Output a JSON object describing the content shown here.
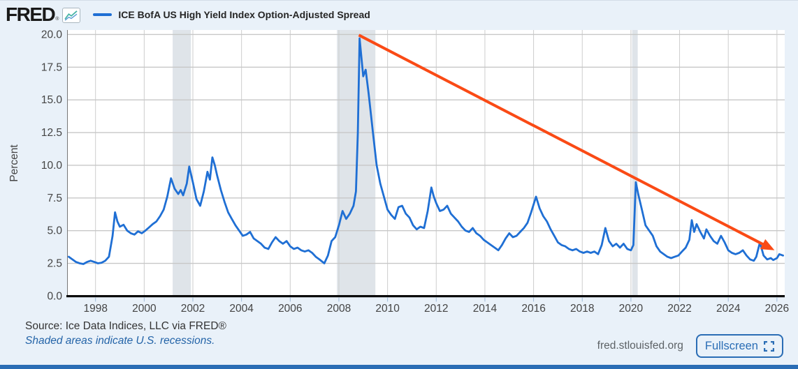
{
  "header": {
    "logo_text": "FRED",
    "registered_mark": "®",
    "series_label": "ICE BofA US High Yield Index Option-Adjusted Spread"
  },
  "footer": {
    "source_line": "Source: Ice Data Indices, LLC via FRED®",
    "recession_note": "Shaded areas indicate U.S. recessions.",
    "site_url": "fred.stlouisfed.org",
    "fullscreen_label": "Fullscreen"
  },
  "colors": {
    "background": "#e9f1f9",
    "plot_background": "#ffffff",
    "gridline": "#c7c7c7",
    "vertical_gridline": "#cdcdcd",
    "recession_band": "#dfe4e9",
    "axis_black": "#0b0b0b",
    "plot_left_border": "#777777",
    "tick_mark": "#9db9d8",
    "tick_label": "#444444",
    "series_blue": "#1f6fd4",
    "arrow_orange": "#fa4a15",
    "accent_blue": "#2a6db5"
  },
  "chart_data": {
    "type": "line",
    "title": "ICE BofA US High Yield Index Option-Adjusted Spread",
    "xlabel": "",
    "ylabel": "Percent",
    "ylim": [
      0,
      20
    ],
    "x_range": [
      1996.86,
      2026.32
    ],
    "grid": true,
    "legend_position": "top-left-header",
    "y_ticks": {
      "values": [
        0,
        2.5,
        5,
        7.5,
        10,
        12.5,
        15,
        17.5,
        20
      ],
      "labels": [
        "0.0",
        "2.5",
        "5.0",
        "7.5",
        "10.0",
        "12.5",
        "15.0",
        "17.5",
        "20.0"
      ]
    },
    "x_ticks": [
      1998,
      2000,
      2002,
      2004,
      2006,
      2008,
      2010,
      2012,
      2014,
      2016,
      2018,
      2020,
      2022,
      2024,
      2026
    ],
    "recessions": [
      [
        2001.17,
        2001.92
      ],
      [
        2007.92,
        2009.5
      ],
      [
        2020.05,
        2020.28
      ]
    ],
    "annotation_arrow": {
      "from": [
        2008.82,
        19.95
      ],
      "to": [
        2025.9,
        3.5
      ],
      "color": "#fa4a15",
      "width": 4
    },
    "series": [
      {
        "name": "ICE BofA US High Yield Index Option-Adjusted Spread",
        "color": "#1f6fd4",
        "unit": "Percent",
        "points": [
          [
            1996.9,
            3.0
          ],
          [
            1997.05,
            2.8
          ],
          [
            1997.2,
            2.6
          ],
          [
            1997.35,
            2.5
          ],
          [
            1997.5,
            2.45
          ],
          [
            1997.65,
            2.6
          ],
          [
            1997.8,
            2.7
          ],
          [
            1997.95,
            2.6
          ],
          [
            1998.1,
            2.5
          ],
          [
            1998.25,
            2.55
          ],
          [
            1998.4,
            2.7
          ],
          [
            1998.55,
            3.0
          ],
          [
            1998.7,
            4.6
          ],
          [
            1998.8,
            6.4
          ],
          [
            1998.9,
            5.7
          ],
          [
            1999.0,
            5.3
          ],
          [
            1999.15,
            5.45
          ],
          [
            1999.3,
            5.0
          ],
          [
            1999.45,
            4.8
          ],
          [
            1999.6,
            4.7
          ],
          [
            1999.75,
            4.95
          ],
          [
            1999.9,
            4.8
          ],
          [
            2000.05,
            5.0
          ],
          [
            2000.2,
            5.25
          ],
          [
            2000.35,
            5.5
          ],
          [
            2000.5,
            5.7
          ],
          [
            2000.65,
            6.1
          ],
          [
            2000.8,
            6.6
          ],
          [
            2000.95,
            7.6
          ],
          [
            2001.1,
            9.0
          ],
          [
            2001.25,
            8.2
          ],
          [
            2001.4,
            7.8
          ],
          [
            2001.5,
            8.1
          ],
          [
            2001.6,
            7.7
          ],
          [
            2001.75,
            8.6
          ],
          [
            2001.85,
            9.9
          ],
          [
            2002.0,
            8.7
          ],
          [
            2002.15,
            7.4
          ],
          [
            2002.3,
            6.9
          ],
          [
            2002.45,
            8.0
          ],
          [
            2002.6,
            9.5
          ],
          [
            2002.7,
            8.9
          ],
          [
            2002.8,
            10.6
          ],
          [
            2002.9,
            10.0
          ],
          [
            2003.0,
            9.2
          ],
          [
            2003.15,
            8.1
          ],
          [
            2003.3,
            7.2
          ],
          [
            2003.45,
            6.4
          ],
          [
            2003.6,
            5.9
          ],
          [
            2003.75,
            5.4
          ],
          [
            2003.9,
            5.0
          ],
          [
            2004.05,
            4.6
          ],
          [
            2004.2,
            4.7
          ],
          [
            2004.35,
            4.9
          ],
          [
            2004.5,
            4.4
          ],
          [
            2004.65,
            4.2
          ],
          [
            2004.8,
            4.0
          ],
          [
            2004.95,
            3.7
          ],
          [
            2005.1,
            3.6
          ],
          [
            2005.25,
            4.1
          ],
          [
            2005.4,
            4.5
          ],
          [
            2005.55,
            4.2
          ],
          [
            2005.7,
            4.0
          ],
          [
            2005.85,
            4.2
          ],
          [
            2006.0,
            3.8
          ],
          [
            2006.15,
            3.6
          ],
          [
            2006.3,
            3.7
          ],
          [
            2006.45,
            3.5
          ],
          [
            2006.6,
            3.4
          ],
          [
            2006.75,
            3.5
          ],
          [
            2006.9,
            3.3
          ],
          [
            2007.05,
            3.0
          ],
          [
            2007.2,
            2.8
          ],
          [
            2007.4,
            2.5
          ],
          [
            2007.55,
            3.1
          ],
          [
            2007.7,
            4.2
          ],
          [
            2007.85,
            4.5
          ],
          [
            2008.0,
            5.4
          ],
          [
            2008.15,
            6.5
          ],
          [
            2008.3,
            5.9
          ],
          [
            2008.45,
            6.3
          ],
          [
            2008.6,
            6.9
          ],
          [
            2008.7,
            8.0
          ],
          [
            2008.78,
            12.5
          ],
          [
            2008.85,
            19.7
          ],
          [
            2009.0,
            16.8
          ],
          [
            2009.1,
            17.3
          ],
          [
            2009.22,
            15.5
          ],
          [
            2009.4,
            12.5
          ],
          [
            2009.55,
            10.0
          ],
          [
            2009.7,
            8.6
          ],
          [
            2009.85,
            7.6
          ],
          [
            2010.0,
            6.6
          ],
          [
            2010.15,
            6.2
          ],
          [
            2010.3,
            5.9
          ],
          [
            2010.45,
            6.8
          ],
          [
            2010.6,
            6.9
          ],
          [
            2010.75,
            6.3
          ],
          [
            2010.9,
            6.0
          ],
          [
            2011.05,
            5.4
          ],
          [
            2011.2,
            5.1
          ],
          [
            2011.35,
            5.3
          ],
          [
            2011.5,
            5.2
          ],
          [
            2011.65,
            6.5
          ],
          [
            2011.8,
            8.3
          ],
          [
            2011.9,
            7.6
          ],
          [
            2012.0,
            7.1
          ],
          [
            2012.15,
            6.5
          ],
          [
            2012.3,
            6.6
          ],
          [
            2012.45,
            6.9
          ],
          [
            2012.6,
            6.3
          ],
          [
            2012.75,
            6.0
          ],
          [
            2012.9,
            5.7
          ],
          [
            2013.05,
            5.3
          ],
          [
            2013.2,
            5.0
          ],
          [
            2013.35,
            4.9
          ],
          [
            2013.5,
            5.2
          ],
          [
            2013.65,
            4.8
          ],
          [
            2013.8,
            4.6
          ],
          [
            2013.95,
            4.3
          ],
          [
            2014.1,
            4.1
          ],
          [
            2014.25,
            3.9
          ],
          [
            2014.4,
            3.7
          ],
          [
            2014.55,
            3.5
          ],
          [
            2014.7,
            3.9
          ],
          [
            2014.85,
            4.4
          ],
          [
            2015.0,
            4.8
          ],
          [
            2015.15,
            4.5
          ],
          [
            2015.3,
            4.6
          ],
          [
            2015.45,
            4.9
          ],
          [
            2015.6,
            5.2
          ],
          [
            2015.75,
            5.6
          ],
          [
            2015.9,
            6.4
          ],
          [
            2016.1,
            7.6
          ],
          [
            2016.25,
            6.7
          ],
          [
            2016.4,
            6.1
          ],
          [
            2016.55,
            5.7
          ],
          [
            2016.7,
            5.1
          ],
          [
            2016.85,
            4.6
          ],
          [
            2017.0,
            4.1
          ],
          [
            2017.15,
            3.9
          ],
          [
            2017.3,
            3.8
          ],
          [
            2017.45,
            3.6
          ],
          [
            2017.6,
            3.5
          ],
          [
            2017.75,
            3.6
          ],
          [
            2017.9,
            3.4
          ],
          [
            2018.05,
            3.3
          ],
          [
            2018.2,
            3.4
          ],
          [
            2018.35,
            3.3
          ],
          [
            2018.5,
            3.4
          ],
          [
            2018.65,
            3.2
          ],
          [
            2018.8,
            3.9
          ],
          [
            2018.95,
            5.2
          ],
          [
            2019.1,
            4.2
          ],
          [
            2019.25,
            3.8
          ],
          [
            2019.4,
            4.0
          ],
          [
            2019.55,
            3.7
          ],
          [
            2019.7,
            4.0
          ],
          [
            2019.85,
            3.6
          ],
          [
            2020.0,
            3.5
          ],
          [
            2020.1,
            3.9
          ],
          [
            2020.2,
            8.7
          ],
          [
            2020.3,
            7.8
          ],
          [
            2020.45,
            6.6
          ],
          [
            2020.6,
            5.4
          ],
          [
            2020.75,
            5.0
          ],
          [
            2020.9,
            4.6
          ],
          [
            2021.05,
            3.8
          ],
          [
            2021.2,
            3.4
          ],
          [
            2021.35,
            3.2
          ],
          [
            2021.5,
            3.0
          ],
          [
            2021.65,
            2.9
          ],
          [
            2021.8,
            3.0
          ],
          [
            2021.95,
            3.1
          ],
          [
            2022.1,
            3.4
          ],
          [
            2022.25,
            3.7
          ],
          [
            2022.4,
            4.3
          ],
          [
            2022.5,
            5.8
          ],
          [
            2022.6,
            4.9
          ],
          [
            2022.7,
            5.5
          ],
          [
            2022.85,
            4.9
          ],
          [
            2023.0,
            4.4
          ],
          [
            2023.1,
            5.1
          ],
          [
            2023.25,
            4.6
          ],
          [
            2023.4,
            4.2
          ],
          [
            2023.55,
            4.0
          ],
          [
            2023.7,
            4.6
          ],
          [
            2023.85,
            4.1
          ],
          [
            2024.0,
            3.5
          ],
          [
            2024.15,
            3.3
          ],
          [
            2024.3,
            3.2
          ],
          [
            2024.45,
            3.3
          ],
          [
            2024.6,
            3.5
          ],
          [
            2024.75,
            3.1
          ],
          [
            2024.9,
            2.8
          ],
          [
            2025.05,
            2.7
          ],
          [
            2025.15,
            3.0
          ],
          [
            2025.3,
            4.1
          ],
          [
            2025.45,
            3.1
          ],
          [
            2025.6,
            2.8
          ],
          [
            2025.75,
            2.9
          ],
          [
            2025.85,
            2.75
          ],
          [
            2026.0,
            2.9
          ],
          [
            2026.1,
            3.2
          ],
          [
            2026.25,
            3.1
          ]
        ]
      }
    ]
  }
}
